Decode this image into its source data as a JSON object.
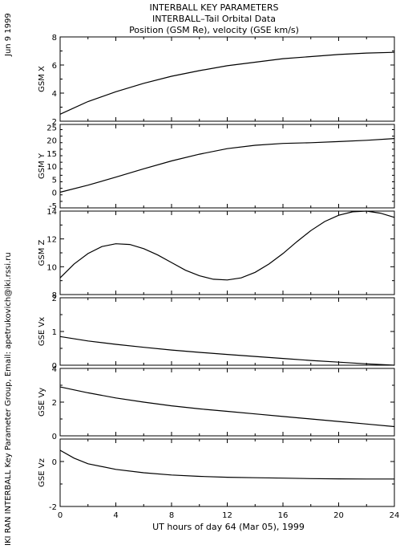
{
  "header": {
    "line1": "INTERBALL KEY PARAMETERS",
    "line2": "INTERBALL–Tail Orbital Data",
    "line3": "Position (GSM Re), velocity (GSE km/s)"
  },
  "side_date": "Jun  9 1999",
  "side_credit": "IKI RAN INTERBALL Key Parameter Group, Email: apetrukovich@iki.rssi.ru",
  "chart_data": [
    {
      "type": "line",
      "ylabel": "GSM X",
      "xlim": [
        0,
        24
      ],
      "ylim": [
        2,
        8
      ],
      "yticks": [
        2,
        4,
        6,
        8
      ],
      "x": [
        0,
        2,
        4,
        6,
        8,
        10,
        12,
        14,
        16,
        18,
        20,
        22,
        24
      ],
      "y": [
        2.5,
        3.4,
        4.1,
        4.7,
        5.2,
        5.6,
        5.95,
        6.2,
        6.45,
        6.6,
        6.75,
        6.85,
        6.9
      ]
    },
    {
      "type": "line",
      "ylabel": "GSM Y",
      "xlim": [
        0,
        24
      ],
      "ylim": [
        -6,
        26
      ],
      "yticks": [
        -5,
        0,
        5,
        10,
        15,
        20,
        25
      ],
      "x": [
        0,
        2,
        4,
        6,
        8,
        10,
        12,
        14,
        16,
        18,
        20,
        22,
        24
      ],
      "y": [
        0.0,
        2.7,
        5.8,
        9.0,
        12.0,
        14.6,
        16.7,
        18.0,
        18.7,
        19.0,
        19.4,
        19.9,
        20.6
      ]
    },
    {
      "type": "line",
      "ylabel": "GSM Z",
      "xlim": [
        0,
        24
      ],
      "ylim": [
        8,
        14
      ],
      "yticks": [
        8,
        10,
        12,
        14
      ],
      "x": [
        0,
        1,
        2,
        3,
        4,
        5,
        6,
        7,
        8,
        9,
        10,
        11,
        12,
        13,
        14,
        15,
        16,
        17,
        18,
        19,
        20,
        21,
        22,
        23,
        24
      ],
      "y": [
        9.2,
        10.2,
        10.95,
        11.45,
        11.65,
        11.6,
        11.3,
        10.85,
        10.3,
        9.75,
        9.35,
        9.1,
        9.05,
        9.2,
        9.6,
        10.2,
        10.95,
        11.8,
        12.6,
        13.25,
        13.7,
        13.95,
        14.0,
        13.85,
        13.55
      ]
    },
    {
      "type": "line",
      "ylabel": "GSE Vx",
      "xlim": [
        0,
        24
      ],
      "ylim": [
        0,
        2
      ],
      "yticks": [
        0,
        1,
        2
      ],
      "x": [
        0,
        2,
        4,
        6,
        8,
        10,
        12,
        14,
        16,
        18,
        20,
        22,
        24
      ],
      "y": [
        0.85,
        0.72,
        0.62,
        0.53,
        0.45,
        0.38,
        0.32,
        0.26,
        0.2,
        0.14,
        0.09,
        0.04,
        0.0
      ]
    },
    {
      "type": "line",
      "ylabel": "GSE Vy",
      "xlim": [
        0,
        24
      ],
      "ylim": [
        0,
        4
      ],
      "yticks": [
        0,
        2,
        4
      ],
      "x": [
        0,
        2,
        4,
        6,
        8,
        10,
        12,
        14,
        16,
        18,
        20,
        22,
        24
      ],
      "y": [
        2.9,
        2.55,
        2.25,
        2.0,
        1.78,
        1.6,
        1.45,
        1.3,
        1.15,
        1.0,
        0.85,
        0.7,
        0.55
      ]
    },
    {
      "type": "line",
      "ylabel": "GSE Vz",
      "xlim": [
        0,
        24
      ],
      "ylim": [
        -2,
        1
      ],
      "yticks": [
        -2,
        0
      ],
      "x": [
        0,
        1,
        2,
        4,
        6,
        8,
        10,
        12,
        14,
        16,
        18,
        20,
        22,
        24
      ],
      "y": [
        0.5,
        0.15,
        -0.1,
        -0.35,
        -0.5,
        -0.6,
        -0.66,
        -0.7,
        -0.72,
        -0.74,
        -0.76,
        -0.77,
        -0.78,
        -0.78
      ]
    }
  ],
  "x_axis": {
    "ticks": [
      0,
      4,
      8,
      12,
      16,
      20,
      24
    ],
    "label": "UT hours of day  64 (Mar 05), 1999"
  }
}
